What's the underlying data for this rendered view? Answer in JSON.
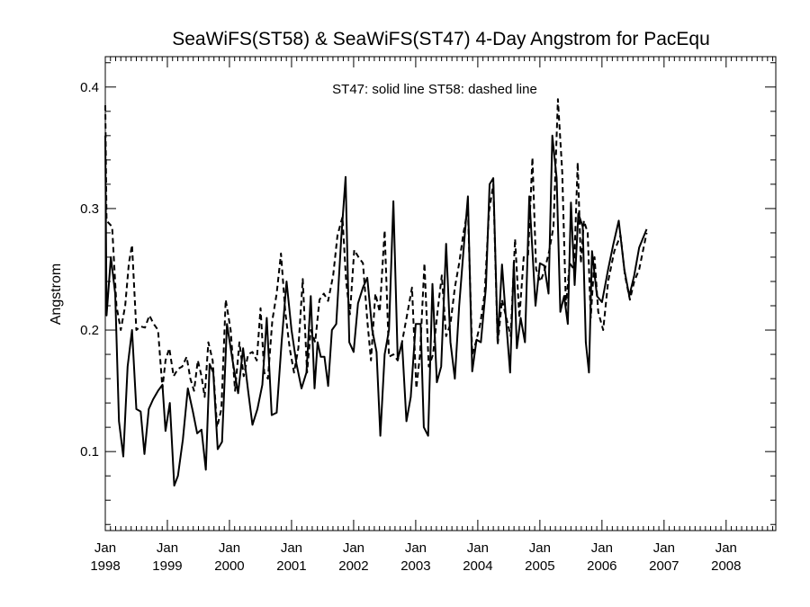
{
  "chart_data": {
    "type": "line",
    "title": "SeaWiFS(ST58) & SeaWiFS(ST47) 4-Day Angstrom for PacEqu",
    "ylabel": "Angstrom",
    "xlabel": "",
    "annotation": "ST47: solid line   ST58: dashed line",
    "xlim": [
      1998.0,
      2008.8
    ],
    "ylim": [
      0.035,
      0.425
    ],
    "grid": false,
    "y_ticks": [
      {
        "value": 0.1,
        "label": "0.1"
      },
      {
        "value": 0.2,
        "label": "0.2"
      },
      {
        "value": 0.3,
        "label": "0.3"
      },
      {
        "value": 0.4,
        "label": "0.4"
      }
    ],
    "x_ticks": [
      {
        "value": 1998.0,
        "month": "Jan",
        "year": "1998"
      },
      {
        "value": 1999.0,
        "month": "Jan",
        "year": "1999"
      },
      {
        "value": 2000.0,
        "month": "Jan",
        "year": "2000"
      },
      {
        "value": 2001.0,
        "month": "Jan",
        "year": "2001"
      },
      {
        "value": 2002.0,
        "month": "Jan",
        "year": "2002"
      },
      {
        "value": 2003.0,
        "month": "Jan",
        "year": "2003"
      },
      {
        "value": 2004.0,
        "month": "Jan",
        "year": "2004"
      },
      {
        "value": 2005.0,
        "month": "Jan",
        "year": "2005"
      },
      {
        "value": 2006.0,
        "month": "Jan",
        "year": "2006"
      },
      {
        "value": 2007.0,
        "month": "Jan",
        "year": "2007"
      },
      {
        "value": 2008.0,
        "month": "Jan",
        "year": "2008"
      }
    ],
    "series": [
      {
        "name": "ST47",
        "style": "solid",
        "color": "#000000",
        "points": [
          [
            1997.93,
            0.36
          ],
          [
            1998.02,
            0.212
          ],
          [
            1998.09,
            0.26
          ],
          [
            1998.16,
            0.23
          ],
          [
            1998.22,
            0.125
          ],
          [
            1998.29,
            0.096
          ],
          [
            1998.36,
            0.17
          ],
          [
            1998.43,
            0.2
          ],
          [
            1998.5,
            0.135
          ],
          [
            1998.57,
            0.133
          ],
          [
            1998.63,
            0.098
          ],
          [
            1998.7,
            0.135
          ],
          [
            1998.77,
            0.143
          ],
          [
            1998.85,
            0.15
          ],
          [
            1998.92,
            0.155
          ],
          [
            1998.97,
            0.117
          ],
          [
            1999.04,
            0.14
          ],
          [
            1999.11,
            0.072
          ],
          [
            1999.17,
            0.08
          ],
          [
            1999.25,
            0.11
          ],
          [
            1999.33,
            0.152
          ],
          [
            1999.41,
            0.133
          ],
          [
            1999.48,
            0.115
          ],
          [
            1999.55,
            0.118
          ],
          [
            1999.62,
            0.085
          ],
          [
            1999.68,
            0.172
          ],
          [
            1999.74,
            0.165
          ],
          [
            1999.81,
            0.102
          ],
          [
            1999.88,
            0.108
          ],
          [
            1999.96,
            0.205
          ],
          [
            2000.05,
            0.175
          ],
          [
            2000.14,
            0.148
          ],
          [
            2000.22,
            0.185
          ],
          [
            2000.3,
            0.15
          ],
          [
            2000.37,
            0.122
          ],
          [
            2000.45,
            0.135
          ],
          [
            2000.53,
            0.155
          ],
          [
            2000.6,
            0.21
          ],
          [
            2000.68,
            0.13
          ],
          [
            2000.76,
            0.132
          ],
          [
            2000.84,
            0.19
          ],
          [
            2000.92,
            0.24
          ],
          [
            2001.0,
            0.2
          ],
          [
            2001.08,
            0.172
          ],
          [
            2001.16,
            0.152
          ],
          [
            2001.24,
            0.165
          ],
          [
            2001.31,
            0.228
          ],
          [
            2001.37,
            0.152
          ],
          [
            2001.42,
            0.19
          ],
          [
            2001.47,
            0.178
          ],
          [
            2001.53,
            0.178
          ],
          [
            2001.59,
            0.154
          ],
          [
            2001.65,
            0.2
          ],
          [
            2001.72,
            0.205
          ],
          [
            2001.8,
            0.275
          ],
          [
            2001.87,
            0.326
          ],
          [
            2001.93,
            0.19
          ],
          [
            2002.0,
            0.182
          ],
          [
            2002.07,
            0.222
          ],
          [
            2002.15,
            0.235
          ],
          [
            2002.22,
            0.243
          ],
          [
            2002.3,
            0.2
          ],
          [
            2002.37,
            0.182
          ],
          [
            2002.43,
            0.113
          ],
          [
            2002.5,
            0.18
          ],
          [
            2002.57,
            0.2
          ],
          [
            2002.64,
            0.306
          ],
          [
            2002.71,
            0.176
          ],
          [
            2002.78,
            0.19
          ],
          [
            2002.85,
            0.125
          ],
          [
            2002.92,
            0.145
          ],
          [
            2003.0,
            0.205
          ],
          [
            2003.08,
            0.205
          ],
          [
            2003.13,
            0.12
          ],
          [
            2003.2,
            0.113
          ],
          [
            2003.27,
            0.238
          ],
          [
            2003.34,
            0.157
          ],
          [
            2003.41,
            0.17
          ],
          [
            2003.49,
            0.271
          ],
          [
            2003.56,
            0.19
          ],
          [
            2003.63,
            0.16
          ],
          [
            2003.7,
            0.22
          ],
          [
            2003.78,
            0.272
          ],
          [
            2003.84,
            0.31
          ],
          [
            2003.91,
            0.166
          ],
          [
            2003.98,
            0.192
          ],
          [
            2004.05,
            0.19
          ],
          [
            2004.13,
            0.235
          ],
          [
            2004.19,
            0.32
          ],
          [
            2004.25,
            0.325
          ],
          [
            2004.32,
            0.19
          ],
          [
            2004.39,
            0.254
          ],
          [
            2004.46,
            0.205
          ],
          [
            2004.52,
            0.165
          ],
          [
            2004.58,
            0.256
          ],
          [
            2004.63,
            0.185
          ],
          [
            2004.69,
            0.21
          ],
          [
            2004.76,
            0.19
          ],
          [
            2004.83,
            0.31
          ],
          [
            2004.88,
            0.265
          ],
          [
            2004.93,
            0.22
          ],
          [
            2005.0,
            0.255
          ],
          [
            2005.07,
            0.253
          ],
          [
            2005.14,
            0.23
          ],
          [
            2005.2,
            0.36
          ],
          [
            2005.27,
            0.325
          ],
          [
            2005.33,
            0.215
          ],
          [
            2005.39,
            0.228
          ],
          [
            2005.45,
            0.205
          ],
          [
            2005.5,
            0.305
          ],
          [
            2005.56,
            0.237
          ],
          [
            2005.62,
            0.296
          ],
          [
            2005.69,
            0.285
          ],
          [
            2005.74,
            0.19
          ],
          [
            2005.79,
            0.165
          ],
          [
            2005.84,
            0.265
          ],
          [
            2005.92,
            0.228
          ],
          [
            2006.0,
            0.223
          ],
          [
            2006.1,
            0.25
          ],
          [
            2006.18,
            0.27
          ],
          [
            2006.27,
            0.29
          ],
          [
            2006.36,
            0.25
          ],
          [
            2006.44,
            0.228
          ],
          [
            2006.52,
            0.245
          ],
          [
            2006.6,
            0.268
          ],
          [
            2006.72,
            0.283
          ]
        ]
      },
      {
        "name": "ST58",
        "style": "dashed",
        "color": "#000000",
        "points": [
          [
            1997.93,
            0.385
          ],
          [
            1998.02,
            0.29
          ],
          [
            1998.11,
            0.285
          ],
          [
            1998.18,
            0.22
          ],
          [
            1998.25,
            0.2
          ],
          [
            1998.32,
            0.22
          ],
          [
            1998.38,
            0.255
          ],
          [
            1998.43,
            0.27
          ],
          [
            1998.5,
            0.2
          ],
          [
            1998.57,
            0.203
          ],
          [
            1998.64,
            0.202
          ],
          [
            1998.71,
            0.212
          ],
          [
            1998.78,
            0.205
          ],
          [
            1998.85,
            0.2
          ],
          [
            1998.92,
            0.152
          ],
          [
            1998.97,
            0.175
          ],
          [
            1999.03,
            0.185
          ],
          [
            1999.1,
            0.162
          ],
          [
            1999.17,
            0.168
          ],
          [
            1999.24,
            0.17
          ],
          [
            1999.31,
            0.178
          ],
          [
            1999.37,
            0.16
          ],
          [
            1999.43,
            0.15
          ],
          [
            1999.49,
            0.175
          ],
          [
            1999.55,
            0.162
          ],
          [
            1999.6,
            0.145
          ],
          [
            1999.66,
            0.19
          ],
          [
            1999.73,
            0.175
          ],
          [
            1999.8,
            0.12
          ],
          [
            1999.87,
            0.135
          ],
          [
            1999.94,
            0.225
          ],
          [
            2000.02,
            0.2
          ],
          [
            2000.09,
            0.15
          ],
          [
            2000.16,
            0.19
          ],
          [
            2000.23,
            0.162
          ],
          [
            2000.3,
            0.18
          ],
          [
            2000.37,
            0.182
          ],
          [
            2000.44,
            0.175
          ],
          [
            2000.5,
            0.218
          ],
          [
            2000.56,
            0.165
          ],
          [
            2000.62,
            0.16
          ],
          [
            2000.69,
            0.208
          ],
          [
            2000.76,
            0.23
          ],
          [
            2000.83,
            0.263
          ],
          [
            2000.9,
            0.215
          ],
          [
            2000.97,
            0.185
          ],
          [
            2001.04,
            0.165
          ],
          [
            2001.11,
            0.185
          ],
          [
            2001.18,
            0.242
          ],
          [
            2001.25,
            0.165
          ],
          [
            2001.31,
            0.2
          ],
          [
            2001.38,
            0.19
          ],
          [
            2001.45,
            0.225
          ],
          [
            2001.52,
            0.23
          ],
          [
            2001.59,
            0.224
          ],
          [
            2001.67,
            0.245
          ],
          [
            2001.74,
            0.278
          ],
          [
            2001.82,
            0.293
          ],
          [
            2001.88,
            0.24
          ],
          [
            2001.94,
            0.213
          ],
          [
            2002.01,
            0.266
          ],
          [
            2002.08,
            0.26
          ],
          [
            2002.15,
            0.255
          ],
          [
            2002.22,
            0.208
          ],
          [
            2002.28,
            0.175
          ],
          [
            2002.35,
            0.23
          ],
          [
            2002.42,
            0.215
          ],
          [
            2002.5,
            0.282
          ],
          [
            2002.57,
            0.178
          ],
          [
            2002.64,
            0.18
          ],
          [
            2002.71,
            0.175
          ],
          [
            2002.78,
            0.19
          ],
          [
            2002.86,
            0.212
          ],
          [
            2002.94,
            0.235
          ],
          [
            2003.01,
            0.152
          ],
          [
            2003.07,
            0.18
          ],
          [
            2003.14,
            0.255
          ],
          [
            2003.21,
            0.17
          ],
          [
            2003.28,
            0.18
          ],
          [
            2003.35,
            0.215
          ],
          [
            2003.42,
            0.245
          ],
          [
            2003.49,
            0.195
          ],
          [
            2003.56,
            0.205
          ],
          [
            2003.63,
            0.235
          ],
          [
            2003.7,
            0.255
          ],
          [
            2003.77,
            0.28
          ],
          [
            2003.84,
            0.3
          ],
          [
            2003.91,
            0.18
          ],
          [
            2003.97,
            0.19
          ],
          [
            2004.04,
            0.205
          ],
          [
            2004.11,
            0.23
          ],
          [
            2004.18,
            0.297
          ],
          [
            2004.25,
            0.32
          ],
          [
            2004.32,
            0.188
          ],
          [
            2004.39,
            0.225
          ],
          [
            2004.46,
            0.21
          ],
          [
            2004.53,
            0.195
          ],
          [
            2004.6,
            0.275
          ],
          [
            2004.67,
            0.21
          ],
          [
            2004.74,
            0.26
          ],
          [
            2004.81,
            0.262
          ],
          [
            2004.88,
            0.342
          ],
          [
            2004.94,
            0.25
          ],
          [
            2005.01,
            0.24
          ],
          [
            2005.08,
            0.25
          ],
          [
            2005.15,
            0.265
          ],
          [
            2005.22,
            0.285
          ],
          [
            2005.29,
            0.39
          ],
          [
            2005.36,
            0.33
          ],
          [
            2005.42,
            0.22
          ],
          [
            2005.48,
            0.255
          ],
          [
            2005.55,
            0.25
          ],
          [
            2005.61,
            0.338
          ],
          [
            2005.66,
            0.255
          ],
          [
            2005.71,
            0.29
          ],
          [
            2005.77,
            0.28
          ],
          [
            2005.82,
            0.21
          ],
          [
            2005.88,
            0.26
          ],
          [
            2005.94,
            0.215
          ],
          [
            2006.02,
            0.2
          ],
          [
            2006.1,
            0.24
          ],
          [
            2006.2,
            0.265
          ],
          [
            2006.3,
            0.278
          ],
          [
            2006.37,
            0.245
          ],
          [
            2006.45,
            0.225
          ],
          [
            2006.52,
            0.24
          ],
          [
            2006.6,
            0.25
          ],
          [
            2006.72,
            0.28
          ]
        ]
      }
    ]
  }
}
